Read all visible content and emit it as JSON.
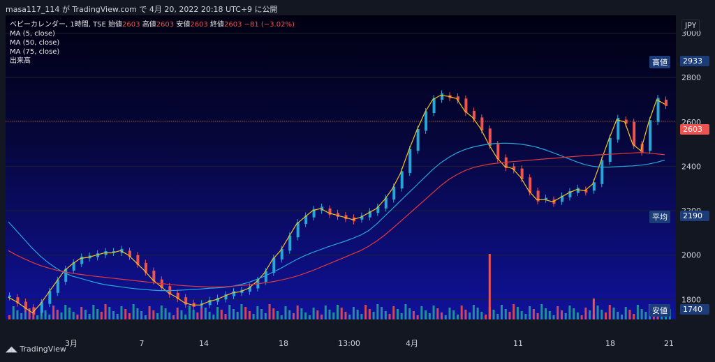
{
  "header": {
    "caption": "masa117_114 が TradingView.com で 4月 20, 2022 20:18 UTC+9 に公開"
  },
  "legend": {
    "symbol": "ベビーカレンダー, 1時間, TSE",
    "ohlc_labels": {
      "open": "始値",
      "high": "高値",
      "low": "安値",
      "close": "終値"
    },
    "open": "2603",
    "high": "2603",
    "low": "2603",
    "close": "2603",
    "change": "−81 (−3.02%)",
    "indicators": [
      "MA (5, close)",
      "MA (50, close)",
      "MA (75, close)",
      "出来高"
    ]
  },
  "currency": "JPY",
  "markers": {
    "high_label": "高値",
    "high_value": "2933",
    "last_value": "2603",
    "avg_label": "平均",
    "avg_value": "2190",
    "low_label": "安値",
    "low_value": "1740"
  },
  "footer": {
    "brand": "TradingView"
  },
  "chart_data": {
    "type": "candlestick",
    "y_ticks": [
      1800,
      2000,
      2200,
      2400,
      2600,
      2800,
      3000
    ],
    "ylim": [
      1710,
      3080
    ],
    "x_tick_labels": [
      "3月",
      "7",
      "14",
      "18",
      "13:00",
      "4月",
      "11",
      "18",
      "21"
    ],
    "last_price": 2603,
    "series": [
      {
        "name": "MA (5, close)",
        "color": "#f5c518",
        "values": [
          1810,
          1790,
          1765,
          1740,
          1780,
          1830,
          1880,
          1930,
          1960,
          1985,
          1990,
          2000,
          2010,
          2010,
          2020,
          2000,
          1965,
          1930,
          1890,
          1860,
          1830,
          1810,
          1785,
          1775,
          1775,
          1790,
          1800,
          1815,
          1830,
          1835,
          1850,
          1880,
          1920,
          1980,
          2020,
          2080,
          2140,
          2170,
          2200,
          2210,
          2190,
          2180,
          2170,
          2160,
          2170,
          2190,
          2210,
          2250,
          2300,
          2370,
          2470,
          2560,
          2640,
          2700,
          2720,
          2715,
          2705,
          2650,
          2620,
          2570,
          2500,
          2440,
          2400,
          2390,
          2350,
          2290,
          2250,
          2250,
          2240,
          2260,
          2280,
          2295,
          2290,
          2320,
          2420,
          2520,
          2610,
          2600,
          2500,
          2470,
          2600,
          2700,
          2680
        ]
      },
      {
        "name": "MA (50, close)",
        "color": "#26a6d8",
        "values": [
          2150,
          2110,
          2070,
          2030,
          1995,
          1965,
          1940,
          1920,
          1905,
          1895,
          1885,
          1875,
          1867,
          1862,
          1857,
          1852,
          1848,
          1845,
          1842,
          1840,
          1840,
          1841,
          1843,
          1845,
          1847,
          1850,
          1852,
          1855,
          1860,
          1867,
          1877,
          1890,
          1905,
          1922,
          1940,
          1960,
          1980,
          1997,
          2012,
          2025,
          2038,
          2050,
          2062,
          2075,
          2090,
          2110,
          2140,
          2175,
          2210,
          2245,
          2280,
          2315,
          2350,
          2385,
          2415,
          2440,
          2460,
          2475,
          2486,
          2494,
          2500,
          2503,
          2504,
          2503,
          2500,
          2494,
          2486,
          2475,
          2462,
          2448,
          2434,
          2420,
          2408,
          2400,
          2396,
          2396,
          2398,
          2400,
          2402,
          2405,
          2410,
          2418,
          2428
        ]
      },
      {
        "name": "MA (75, close)",
        "color": "#e0393e",
        "values": [
          2020,
          2000,
          1983,
          1967,
          1953,
          1942,
          1932,
          1924,
          1918,
          1913,
          1908,
          1904,
          1900,
          1896,
          1892,
          1888,
          1884,
          1880,
          1876,
          1872,
          1868,
          1865,
          1862,
          1860,
          1858,
          1856,
          1856,
          1857,
          1860,
          1863,
          1866,
          1870,
          1875,
          1880,
          1887,
          1895,
          1905,
          1917,
          1930,
          1945,
          1960,
          1975,
          1990,
          2005,
          2020,
          2040,
          2063,
          2090,
          2120,
          2152,
          2184,
          2216,
          2248,
          2280,
          2312,
          2340,
          2362,
          2380,
          2393,
          2402,
          2409,
          2414,
          2418,
          2421,
          2424,
          2427,
          2430,
          2433,
          2436,
          2439,
          2442,
          2445,
          2448,
          2450,
          2452,
          2454,
          2456,
          2458,
          2460,
          2462,
          2460,
          2456,
          2452
        ]
      }
    ],
    "volume_spikes": [
      {
        "index": 60,
        "value": "spike"
      },
      {
        "index": 73,
        "value": "spike"
      },
      {
        "index": 88,
        "value": "spike"
      }
    ]
  }
}
